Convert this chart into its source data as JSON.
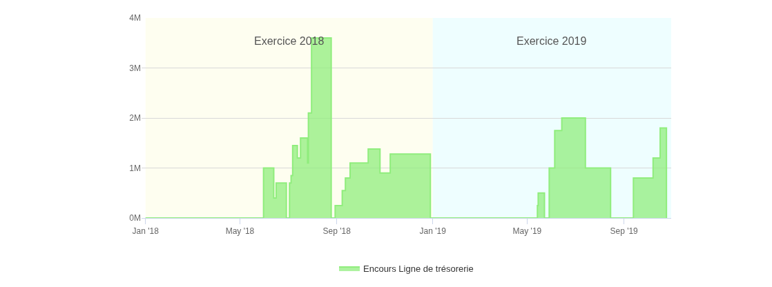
{
  "chart_data": {
    "type": "step",
    "x": [
      "2018-01-01",
      "2018-05-31",
      "2018-06-13",
      "2018-06-16",
      "2018-06-29",
      "2018-07-03",
      "2018-07-05",
      "2018-07-07",
      "2018-07-13",
      "2018-07-17",
      "2018-07-26",
      "2018-07-27",
      "2018-07-31",
      "2018-08-25",
      "2018-08-30",
      "2018-09-08",
      "2018-09-12",
      "2018-09-18",
      "2018-10-11",
      "2018-10-26",
      "2018-11-08",
      "2018-12-29",
      "2019-05-14",
      "2019-05-15",
      "2019-05-23",
      "2019-05-29",
      "2019-06-05",
      "2019-06-14",
      "2019-07-14",
      "2019-08-15",
      "2019-09-13",
      "2019-10-08",
      "2019-10-17",
      "2019-10-25"
    ],
    "series": [
      {
        "name": "Encours Ligne de trésorerie",
        "color": "#90ed7d",
        "values": [
          0,
          1.0,
          0.4,
          0.7,
          0,
          0.7,
          0.85,
          1.45,
          1.2,
          1.6,
          1.1,
          2.1,
          3.6,
          0,
          0.25,
          0.55,
          0.8,
          1.1,
          1.38,
          0.9,
          1.28,
          0,
          0.25,
          0.5,
          0,
          1.0,
          1.75,
          2.0,
          1.0,
          0,
          0.8,
          1.2,
          1.8,
          0
        ]
      }
    ],
    "xlim": [
      "2017-12-27",
      "2019-10-31"
    ],
    "xticks": [
      {
        "value": "2018-01-01",
        "label": "Jan '18"
      },
      {
        "value": "2018-05-01",
        "label": "May '18"
      },
      {
        "value": "2018-09-01",
        "label": "Sep '18"
      },
      {
        "value": "2019-01-01",
        "label": "Jan '19"
      },
      {
        "value": "2019-05-01",
        "label": "May '19"
      },
      {
        "value": "2019-09-01",
        "label": "Sep '19"
      }
    ],
    "ylim": [
      0,
      4
    ],
    "yticks": [
      {
        "value": 0,
        "label": "0M"
      },
      {
        "value": 1,
        "label": "1M"
      },
      {
        "value": 2,
        "label": "2M"
      },
      {
        "value": 3,
        "label": "3M"
      },
      {
        "value": 4,
        "label": "4M"
      }
    ],
    "bands": [
      {
        "axis": "x",
        "from": "2018-01-01",
        "to": "2019-01-01",
        "label": "Exercice 2018",
        "color": "#fefef0"
      },
      {
        "axis": "x",
        "from": "2019-01-01",
        "to": "2019-10-31",
        "label": "Exercice 2019",
        "color": "#eefeff"
      }
    ],
    "grid": "y",
    "legend": "bottom"
  }
}
